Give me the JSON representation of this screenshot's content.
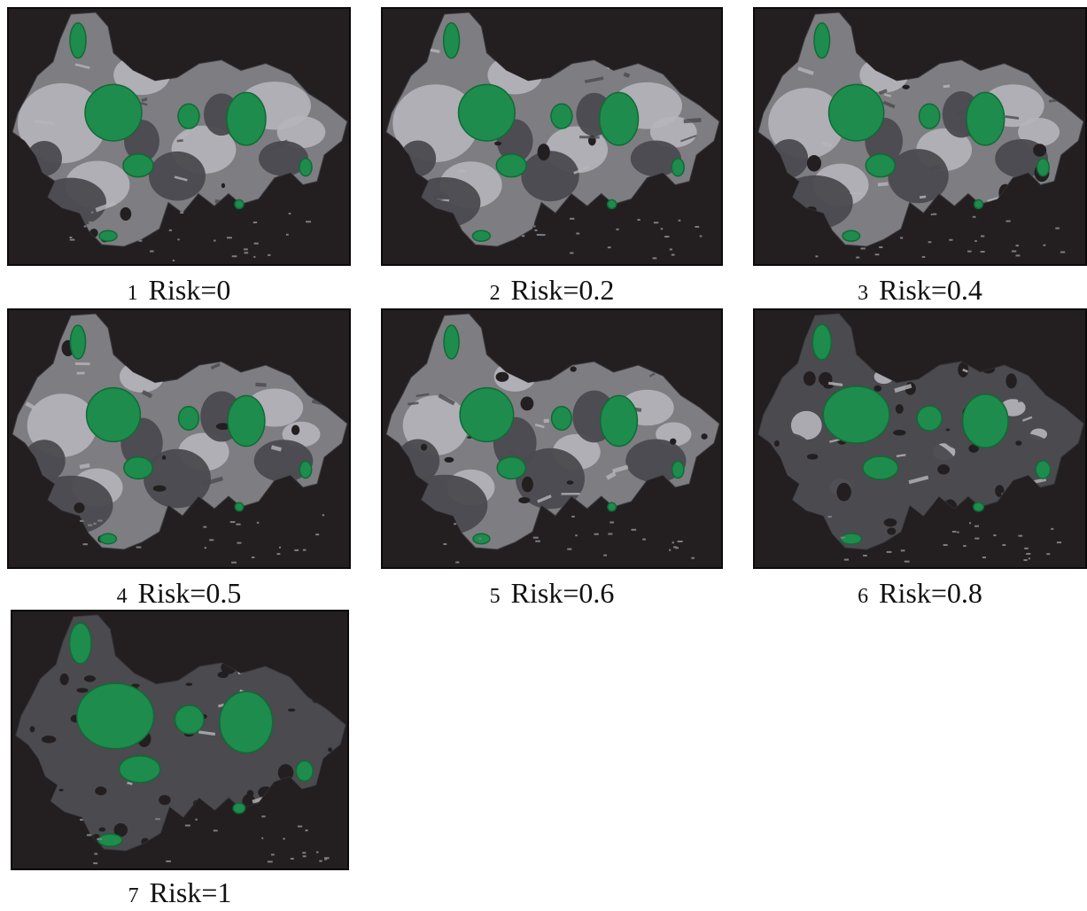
{
  "colors": {
    "background": "#231f20",
    "dark_gray": "#4a4a4f",
    "mid_gray": "#7d7d82",
    "light_gray": "#b5b5ba",
    "green": "#1e8c4c",
    "green_dark": "#0f6b35"
  },
  "panels": [
    {
      "number": "1",
      "label": "Risk=0",
      "risk": 0,
      "light_share": 0.7,
      "dark_share": 0.2,
      "green_scale": 1.0,
      "fragmentation": 0.1
    },
    {
      "number": "2",
      "label": "Risk=0.2",
      "risk": 0.2,
      "light_share": 0.68,
      "dark_share": 0.22,
      "green_scale": 1.0,
      "fragmentation": 0.12
    },
    {
      "number": "3",
      "label": "Risk=0.4",
      "risk": 0.4,
      "light_share": 0.62,
      "dark_share": 0.28,
      "green_scale": 1.0,
      "fragmentation": 0.18
    },
    {
      "number": "4",
      "label": "Risk=0.5",
      "risk": 0.5,
      "light_share": 0.55,
      "dark_share": 0.35,
      "green_scale": 0.95,
      "fragmentation": 0.22
    },
    {
      "number": "5",
      "label": "Risk=0.6",
      "risk": 0.6,
      "light_share": 0.52,
      "dark_share": 0.38,
      "green_scale": 0.95,
      "fragmentation": 0.25
    },
    {
      "number": "6",
      "label": "Risk=0.8",
      "risk": 0.8,
      "light_share": 0.25,
      "dark_share": 0.65,
      "green_scale": 1.0,
      "fragmentation": 0.55
    },
    {
      "number": "7",
      "label": "Risk=1",
      "risk": 1,
      "light_share": 0.05,
      "dark_share": 0.85,
      "green_scale": 1.15,
      "fragmentation": 0.8
    }
  ]
}
